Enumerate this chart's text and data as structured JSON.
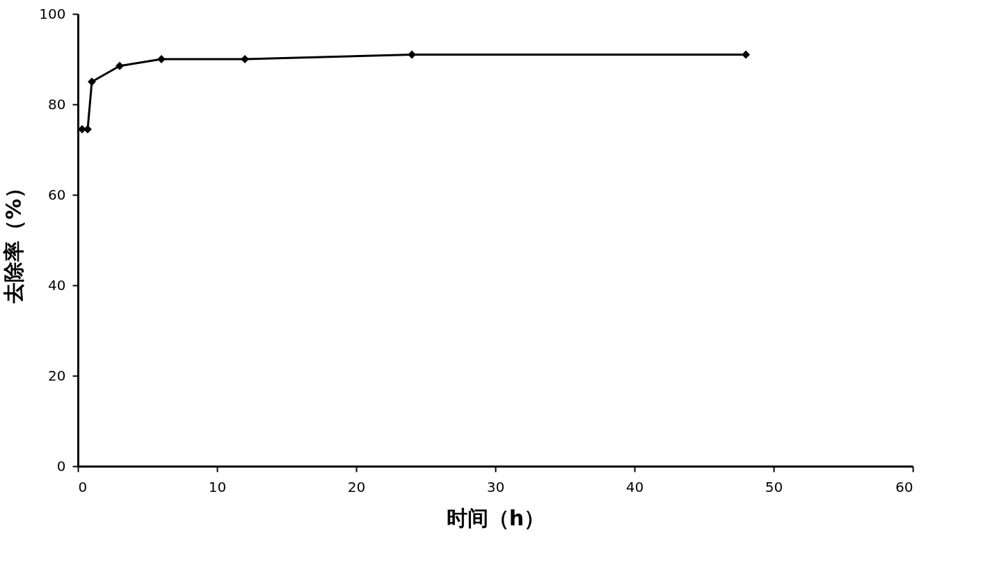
{
  "chart_data": {
    "type": "line",
    "xlabel": "时间（h）",
    "ylabel": "去除率（%）",
    "x": [
      0.3,
      0.7,
      1,
      3,
      6,
      12,
      24,
      48
    ],
    "series": [
      {
        "color": "#000000",
        "values": [
          74.5,
          74.5,
          85,
          88.5,
          90,
          90,
          91,
          91
        ]
      }
    ],
    "xlim": [
      0,
      60
    ],
    "xticks": [
      0,
      10,
      20,
      30,
      40,
      50,
      60
    ],
    "ylim": [
      0,
      100
    ],
    "yticks": [
      0,
      20,
      40,
      60,
      80,
      100
    ],
    "grid": false,
    "marker": "diamond",
    "line_style": "solid"
  }
}
